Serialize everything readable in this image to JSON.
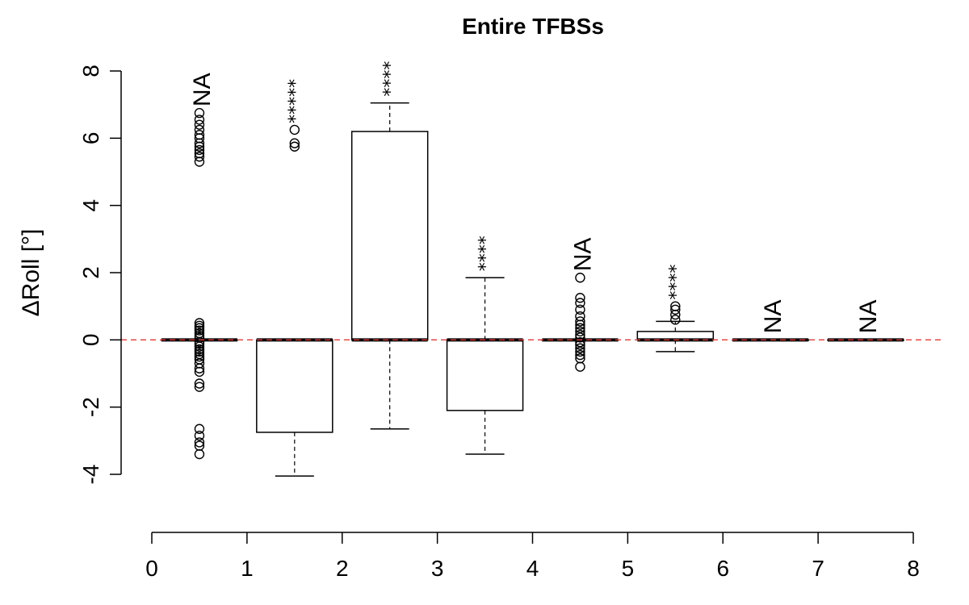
{
  "chart_data": {
    "type": "boxplot",
    "title": "Entire TFBSs",
    "ylabel": "ΔRoll [°]",
    "xlabel": "",
    "xlim": [
      0,
      8
    ],
    "ylim": [
      -4,
      8
    ],
    "x_ticks": [
      "0",
      "1",
      "2",
      "3",
      "4",
      "5",
      "6",
      "7",
      "8"
    ],
    "y_ticks": [
      "-4",
      "-2",
      "0",
      "2",
      "4",
      "6",
      "8"
    ],
    "reference_line": {
      "y": 0,
      "color": "#e53935",
      "style": "dashed"
    },
    "boxes": [
      {
        "position": 0.5,
        "q1": 0,
        "median": 0,
        "q3": 0,
        "whisker_low": 0,
        "whisker_high": 0,
        "outliers": [
          6.75,
          6.55,
          6.4,
          6.25,
          6.1,
          6.0,
          5.85,
          5.75,
          5.65,
          5.55,
          5.45,
          5.3,
          0.5,
          0.42,
          0.35,
          0.28,
          0.2,
          0.12,
          0.06,
          -0.06,
          -0.12,
          -0.2,
          -0.28,
          -0.35,
          -0.42,
          -0.5,
          -0.58,
          -0.7,
          -0.85,
          -0.95,
          -1.3,
          -1.4,
          -2.65,
          -2.85,
          -3.05,
          -3.15,
          -3.4
        ],
        "annotation": "NA"
      },
      {
        "position": 1.5,
        "q1": -2.75,
        "median": 0,
        "q3": 0,
        "whisker_low": -4.05,
        "whisker_high": 0,
        "outliers": [
          6.25,
          5.85,
          5.75
        ],
        "annotation": "*****"
      },
      {
        "position": 2.5,
        "q1": 0,
        "median": 0,
        "q3": 6.2,
        "whisker_low": -2.65,
        "whisker_high": 7.05,
        "outliers": [],
        "annotation": "****"
      },
      {
        "position": 3.5,
        "q1": -2.1,
        "median": 0,
        "q3": 0,
        "whisker_low": -3.4,
        "whisker_high": 1.85,
        "outliers": [],
        "annotation": "****"
      },
      {
        "position": 4.5,
        "q1": 0,
        "median": 0,
        "q3": 0,
        "whisker_low": 0,
        "whisker_high": 0,
        "outliers": [
          1.85,
          1.25,
          1.1,
          0.9,
          0.7,
          0.55,
          0.45,
          0.35,
          0.25,
          0.15,
          0.07,
          -0.07,
          -0.15,
          -0.25,
          -0.35,
          -0.45,
          -0.55,
          -0.8
        ],
        "annotation": "NA"
      },
      {
        "position": 5.5,
        "q1": 0,
        "median": 0,
        "q3": 0.25,
        "whisker_low": -0.35,
        "whisker_high": 0.55,
        "outliers": [
          1.0,
          0.9,
          0.75,
          0.6
        ],
        "annotation": "****"
      },
      {
        "position": 6.5,
        "q1": 0,
        "median": 0,
        "q3": 0,
        "whisker_low": 0,
        "whisker_high": 0,
        "outliers": [],
        "annotation": "NA"
      },
      {
        "position": 7.5,
        "q1": 0,
        "median": 0,
        "q3": 0,
        "whisker_low": 0,
        "whisker_high": 0,
        "outliers": [],
        "annotation": "NA"
      }
    ]
  }
}
